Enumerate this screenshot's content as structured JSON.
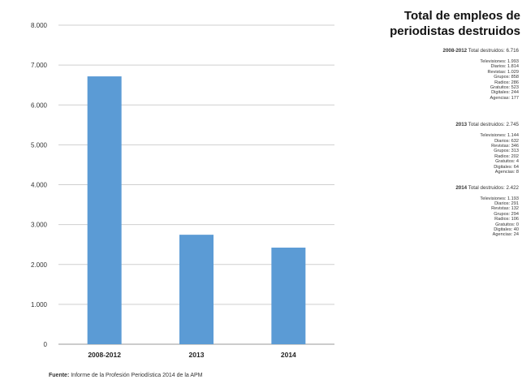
{
  "chart_data": {
    "type": "bar",
    "categories": [
      "2008-2012",
      "2013",
      "2014"
    ],
    "values": [
      6716,
      2745,
      2422
    ],
    "ylim": [
      0,
      8000
    ],
    "yticks": [
      "0",
      "1.000",
      "2.000",
      "3.000",
      "4.000",
      "5.000",
      "6.000",
      "7.000",
      "8.000"
    ],
    "grid": true,
    "bar_color": "#5b9bd5"
  },
  "side": {
    "title_line1": "Total de empleos de",
    "title_line2": "periodistas destruidos",
    "blocks": [
      {
        "period": "2008-2012",
        "summary": "Total destruidos: 6.716",
        "items": [
          "Televisiones: 1.993",
          "Diarios: 1.814",
          "Revistas: 1.029",
          "Grupos: 858",
          "Radios: 286",
          "Gratuitos: 523",
          "Digitales: 244",
          "Agencias: 177"
        ]
      },
      {
        "period": "2013",
        "summary": "Total destruidos: 2.745",
        "items": [
          "Televisiones: 1.144",
          "Diarios: 632",
          "Revistas: 346",
          "Grupos: 313",
          "Radios: 202",
          "Gratuitos: 4",
          "Digitales: 64",
          "Agencias: 8"
        ]
      },
      {
        "period": "2014",
        "summary": "Total destruidos: 2.422",
        "items": [
          "Televisiones: 1.193",
          "Diarios: 291",
          "Revistas: 132",
          "Grupos: 294",
          "Radios: 106",
          "Gratuitos: 0",
          "Digitales: 40",
          "Agencias: 24"
        ]
      }
    ]
  },
  "source": {
    "label": "Fuente:",
    "text": "Informe de la Profesión Periodística 2014 de la APM"
  }
}
